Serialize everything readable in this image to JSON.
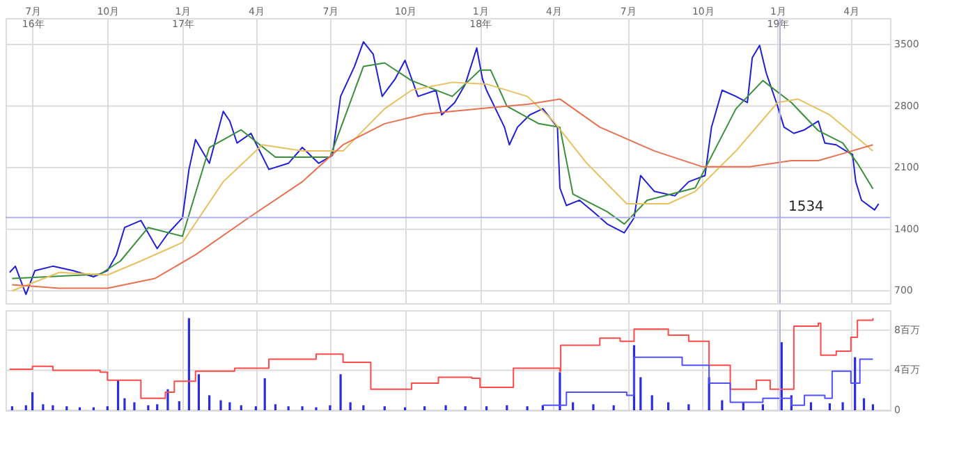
{
  "chart_data": [
    {
      "type": "line",
      "grid": true,
      "xlim": [
        "2016-05-29",
        "2019-05-19"
      ],
      "xticks": [
        {
          "value": "2016-07-01",
          "label": "7月\n16年"
        },
        {
          "value": "2016-10-01",
          "label": "10月"
        },
        {
          "value": "2017-01-01",
          "label": "1月\n17年"
        },
        {
          "value": "2017-04-01",
          "label": "4月"
        },
        {
          "value": "2017-07-01",
          "label": "7月"
        },
        {
          "value": "2017-10-01",
          "label": "10月"
        },
        {
          "value": "2018-01-01",
          "label": "1月\n18年"
        },
        {
          "value": "2018-04-01",
          "label": "4月"
        },
        {
          "value": "2018-07-01",
          "label": "7月"
        },
        {
          "value": "2018-10-01",
          "label": "10月"
        },
        {
          "value": "2019-01-01",
          "label": "1月\n19年"
        },
        {
          "value": "2019-04-01",
          "label": "4月"
        }
      ],
      "ylim": [
        560,
        3800
      ],
      "yticks": [
        700,
        1400,
        2100,
        2800,
        3500
      ],
      "ref_lines": [
        {
          "axis": "y",
          "value": 1534,
          "label": "1534",
          "color": "#b0b0e8"
        },
        {
          "axis": "x",
          "value": "2019-01-04",
          "color": "#b0b0e8"
        }
      ],
      "series": [
        {
          "color": "#1f1fd6",
          "x": [
            "2016-06-03",
            "2016-06-10",
            "2016-06-23",
            "2016-07-04",
            "2016-07-26",
            "2016-08-20",
            "2016-09-14",
            "2016-10-01",
            "2016-10-12",
            "2016-10-22",
            "2016-11-11",
            "2016-12-01",
            "2016-12-14",
            "2017-01-01",
            "2017-01-09",
            "2017-01-17",
            "2017-02-03",
            "2017-02-20",
            "2017-02-28",
            "2017-03-09",
            "2017-03-26",
            "2017-04-17",
            "2017-05-11",
            "2017-05-28",
            "2017-06-17",
            "2017-07-04",
            "2017-07-14",
            "2017-07-31",
            "2017-08-11",
            "2017-08-23",
            "2017-09-03",
            "2017-09-19",
            "2017-10-01",
            "2017-10-17",
            "2017-11-08",
            "2017-11-15",
            "2017-12-01",
            "2017-12-14",
            "2017-12-28",
            "2018-01-04",
            "2018-01-09",
            "2018-01-31",
            "2018-02-06",
            "2018-02-16",
            "2018-03-03",
            "2018-03-19",
            "2018-04-06",
            "2018-04-09",
            "2018-04-17",
            "2018-05-03",
            "2018-05-20",
            "2018-06-06",
            "2018-06-27",
            "2018-07-09",
            "2018-07-17",
            "2018-08-03",
            "2018-08-28",
            "2018-09-14",
            "2018-10-04",
            "2018-10-12",
            "2018-10-25",
            "2018-11-11",
            "2018-11-25",
            "2018-12-01",
            "2018-12-10",
            "2018-12-18",
            "2019-01-01",
            "2019-01-09",
            "2019-01-21",
            "2019-02-03",
            "2019-02-20",
            "2019-02-28",
            "2019-03-14",
            "2019-03-26",
            "2019-04-03",
            "2019-04-07",
            "2019-04-14",
            "2019-04-30",
            "2019-05-05"
          ],
          "values": [
            910,
            980,
            660,
            930,
            980,
            930,
            860,
            930,
            1110,
            1420,
            1500,
            1180,
            1350,
            1530,
            2080,
            2420,
            2150,
            2740,
            2630,
            2380,
            2490,
            2080,
            2150,
            2330,
            2150,
            2240,
            2910,
            3250,
            3530,
            3390,
            2910,
            3110,
            3320,
            2910,
            2980,
            2700,
            2840,
            3050,
            3460,
            3110,
            2980,
            2560,
            2360,
            2560,
            2700,
            2770,
            2560,
            1870,
            1670,
            1730,
            1600,
            1460,
            1360,
            1530,
            2010,
            1830,
            1780,
            1940,
            2010,
            2560,
            2980,
            2910,
            2840,
            3350,
            3490,
            3180,
            2800,
            2560,
            2490,
            2530,
            2630,
            2380,
            2360,
            2290,
            2250,
            1940,
            1730,
            1620,
            1690
          ]
        },
        {
          "color": "#3a8f3a",
          "x": [
            "2016-06-06",
            "2016-09-22",
            "2016-10-17",
            "2016-11-20",
            "2017-01-01",
            "2017-02-03",
            "2017-03-14",
            "2017-04-25",
            "2017-07-01",
            "2017-08-11",
            "2017-09-06",
            "2017-10-09",
            "2017-11-28",
            "2018-01-01",
            "2018-01-14",
            "2018-02-03",
            "2018-03-14",
            "2018-04-09",
            "2018-04-25",
            "2018-06-06",
            "2018-06-27",
            "2018-07-25",
            "2018-09-22",
            "2018-11-11",
            "2018-12-14",
            "2019-01-18",
            "2019-02-20",
            "2019-03-22",
            "2019-04-09",
            "2019-04-28"
          ],
          "values": [
            840,
            890,
            1040,
            1420,
            1320,
            2330,
            2530,
            2220,
            2220,
            3250,
            3290,
            3090,
            2910,
            3210,
            3210,
            2800,
            2600,
            2560,
            1800,
            1600,
            1460,
            1730,
            1870,
            2770,
            3090,
            2840,
            2520,
            2380,
            2150,
            1860
          ]
        },
        {
          "color": "#e8c060",
          "x": [
            "2016-06-06",
            "2016-08-03",
            "2016-10-01",
            "2016-11-11",
            "2017-01-01",
            "2017-02-20",
            "2017-04-09",
            "2017-05-28",
            "2017-07-17",
            "2017-09-06",
            "2017-10-09",
            "2017-11-28",
            "2018-01-09",
            "2018-02-28",
            "2018-04-01",
            "2018-05-12",
            "2018-06-30",
            "2018-08-20",
            "2018-09-22",
            "2018-11-11",
            "2019-01-01",
            "2019-01-26",
            "2019-03-06",
            "2019-04-28"
          ],
          "values": [
            700,
            910,
            880,
            1040,
            1250,
            1940,
            2360,
            2290,
            2290,
            2770,
            2980,
            3070,
            3050,
            2910,
            2630,
            2150,
            1690,
            1690,
            1830,
            2290,
            2840,
            2880,
            2700,
            2290
          ]
        },
        {
          "color": "#e87050",
          "x": [
            "2016-06-06",
            "2016-08-03",
            "2016-10-01",
            "2016-11-28",
            "2017-01-17",
            "2017-03-23",
            "2017-05-28",
            "2017-07-17",
            "2017-09-06",
            "2017-10-25",
            "2018-01-01",
            "2018-02-28",
            "2018-04-09",
            "2018-05-28",
            "2018-08-03",
            "2018-10-01",
            "2018-11-28",
            "2019-01-18",
            "2019-02-20",
            "2019-03-22",
            "2019-04-28"
          ],
          "values": [
            770,
            730,
            730,
            840,
            1110,
            1530,
            1940,
            2360,
            2600,
            2710,
            2770,
            2820,
            2880,
            2560,
            2290,
            2110,
            2110,
            2180,
            2180,
            2260,
            2360
          ]
        }
      ]
    },
    {
      "type": "bar",
      "grid": true,
      "tick_labels": "y",
      "xlim": [
        "2016-05-29",
        "2019-05-19"
      ],
      "xticks": [
        {
          "value": "2016-07-01",
          "label": null
        },
        {
          "value": "2016-10-01",
          "label": null
        },
        {
          "value": "2017-01-01",
          "label": null
        },
        {
          "value": "2017-04-01",
          "label": null
        },
        {
          "value": "2017-07-01",
          "label": null
        },
        {
          "value": "2017-10-01",
          "label": null
        },
        {
          "value": "2018-01-01",
          "label": null
        },
        {
          "value": "2018-04-01",
          "label": null
        },
        {
          "value": "2018-07-01",
          "label": null
        },
        {
          "value": "2018-10-01",
          "label": null
        },
        {
          "value": "2019-01-01",
          "label": null
        },
        {
          "value": "2019-04-01",
          "label": null
        }
      ],
      "ylim": [
        0,
        10
      ],
      "yticks": [
        0,
        {
          "value": 4,
          "label": "4百万"
        },
        {
          "value": 8,
          "label": "8百万"
        }
      ],
      "ref_lines": [
        {
          "axis": "x",
          "value": "2019-01-04",
          "color": "#b0b0e8"
        }
      ],
      "series": [
        {
          "color": "#2b2be0",
          "x": [
            "2016-06-06",
            "2016-06-23",
            "2016-07-01",
            "2016-07-14",
            "2016-07-26",
            "2016-08-12",
            "2016-08-28",
            "2016-09-14",
            "2016-10-01",
            "2016-10-14",
            "2016-10-22",
            "2016-11-03",
            "2016-11-20",
            "2016-12-01",
            "2016-12-14",
            "2016-12-28",
            "2017-01-09",
            "2017-01-21",
            "2017-02-03",
            "2017-02-17",
            "2017-02-28",
            "2017-03-14",
            "2017-04-01",
            "2017-04-12",
            "2017-04-25",
            "2017-05-11",
            "2017-05-28",
            "2017-06-14",
            "2017-07-01",
            "2017-07-14",
            "2017-07-26",
            "2017-08-11",
            "2017-09-06",
            "2017-10-01",
            "2017-10-25",
            "2017-11-20",
            "2017-12-14",
            "2018-01-09",
            "2018-02-03",
            "2018-02-28",
            "2018-03-19",
            "2018-04-09",
            "2018-04-25",
            "2018-05-20",
            "2018-06-14",
            "2018-07-09",
            "2018-07-17",
            "2018-07-31",
            "2018-08-20",
            "2018-09-14",
            "2018-10-09",
            "2018-10-25",
            "2018-11-20",
            "2018-12-14",
            "2019-01-06",
            "2019-01-18",
            "2019-02-11",
            "2019-03-06",
            "2019-03-22",
            "2019-04-06",
            "2019-04-17",
            "2019-04-28"
          ],
          "values": [
            0.4,
            0.5,
            1.8,
            0.6,
            0.5,
            0.4,
            0.3,
            0.3,
            0.4,
            3.0,
            1.2,
            0.8,
            0.5,
            0.6,
            2.1,
            0.9,
            9.2,
            3.6,
            1.5,
            1.0,
            0.8,
            0.5,
            0.4,
            3.2,
            0.6,
            0.4,
            0.4,
            0.3,
            0.5,
            3.6,
            0.8,
            0.5,
            0.4,
            0.3,
            0.4,
            0.5,
            0.4,
            0.4,
            0.5,
            0.4,
            0.5,
            3.8,
            0.8,
            0.6,
            0.5,
            6.5,
            3.3,
            1.5,
            0.8,
            0.6,
            3.3,
            1.0,
            0.8,
            0.6,
            6.8,
            1.5,
            0.8,
            0.7,
            0.8,
            5.3,
            1.2,
            0.6
          ]
        },
        {
          "type": "step",
          "color": "#ff4a4a",
          "x": [
            "2016-06-03",
            "2016-07-01",
            "2016-07-26",
            "2016-09-22",
            "2016-10-01",
            "2016-11-11",
            "2016-12-11",
            "2016-12-22",
            "2017-01-17",
            "2017-03-06",
            "2017-04-17",
            "2017-06-14",
            "2017-07-17",
            "2017-08-20",
            "2017-10-09",
            "2017-11-11",
            "2017-12-22",
            "2018-01-01",
            "2018-02-11",
            "2018-04-09",
            "2018-04-10",
            "2018-05-28",
            "2018-06-22",
            "2018-07-09",
            "2018-08-20",
            "2018-09-14",
            "2018-10-09",
            "2018-11-04",
            "2018-12-06",
            "2018-12-23",
            "2019-01-14",
            "2019-01-21",
            "2019-02-20",
            "2019-02-23",
            "2019-03-14",
            "2019-04-01",
            "2019-04-09",
            "2019-04-28"
          ],
          "values": [
            4.1,
            4.4,
            4.0,
            3.8,
            3.0,
            1.2,
            1.8,
            2.9,
            3.9,
            4.2,
            5.1,
            5.6,
            4.8,
            2.1,
            2.7,
            3.3,
            3.2,
            2.3,
            4.2,
            3.9,
            6.5,
            7.2,
            6.9,
            8.1,
            7.5,
            6.9,
            4.5,
            2.1,
            3.0,
            2.1,
            2.1,
            8.4,
            8.7,
            5.5,
            5.9,
            7.3,
            9.0,
            9.2
          ]
        },
        {
          "type": "step",
          "color": "#5050ff",
          "x": [
            "2018-03-19",
            "2018-04-09",
            "2018-04-17",
            "2018-06-30",
            "2018-07-09",
            "2018-09-06",
            "2018-10-09",
            "2018-11-04",
            "2018-12-14",
            "2019-01-18",
            "2019-02-03",
            "2019-02-28",
            "2019-03-09",
            "2019-04-01",
            "2019-04-12",
            "2019-04-28"
          ],
          "values": [
            0.5,
            0.5,
            1.8,
            1.5,
            5.3,
            4.5,
            2.7,
            0.8,
            1.2,
            0.5,
            1.5,
            1.2,
            3.9,
            2.7,
            5.1,
            5.1
          ]
        }
      ]
    }
  ]
}
